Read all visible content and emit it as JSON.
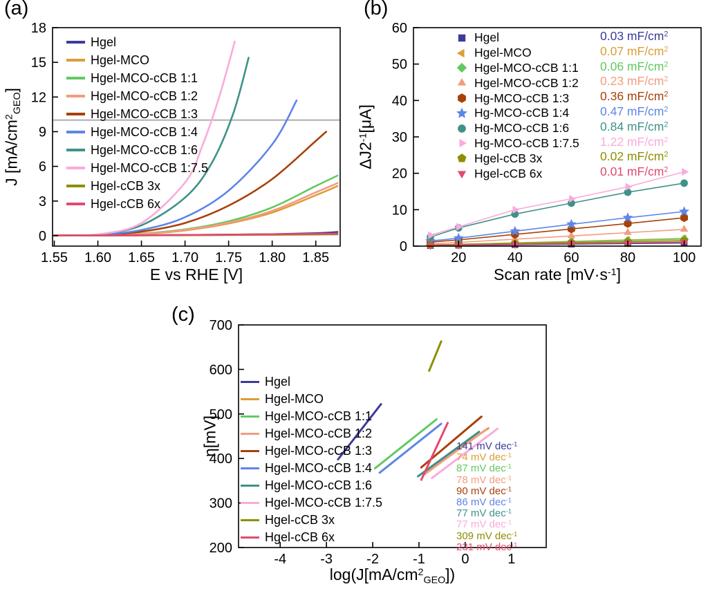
{
  "figure": {
    "panels": {
      "a": {
        "label": "(a)"
      },
      "b": {
        "label": "(b)"
      },
      "c": {
        "label": "(c)"
      }
    }
  },
  "chart_data": [
    {
      "id": "panel-a",
      "type": "line",
      "title": "",
      "xlabel": "E vs  RHE [V]",
      "ylabel": "J [mA/cm^{2}_{GEO}]",
      "xlim": [
        1.548,
        1.878
      ],
      "ylim": [
        -0.9,
        18
      ],
      "xticks": {
        "values": [
          1.55,
          1.6,
          1.65,
          1.7,
          1.75,
          1.8,
          1.85
        ],
        "labels": [
          "1.55",
          "1.60",
          "1.65",
          "1.70",
          "1.75",
          "1.80",
          "1.85"
        ]
      },
      "yticks": {
        "values": [
          0,
          3,
          6,
          9,
          12,
          15,
          18
        ],
        "labels": [
          "0",
          "3",
          "6",
          "9",
          "12",
          "15",
          "18"
        ]
      },
      "hlines": [
        10
      ],
      "legend_position": "top-left",
      "grid": false,
      "series": [
        {
          "name": "Hgel",
          "color": "#3d3b99",
          "points": [
            [
              1.55,
              0.02
            ],
            [
              1.6,
              0.03
            ],
            [
              1.65,
              0.04
            ],
            [
              1.7,
              0.06
            ],
            [
              1.75,
              0.09
            ],
            [
              1.8,
              0.13
            ],
            [
              1.85,
              0.22
            ],
            [
              1.875,
              0.32
            ]
          ]
        },
        {
          "name": "Hgel-MCO",
          "color": "#dd9d37",
          "points": [
            [
              1.55,
              0.02
            ],
            [
              1.6,
              0.04
            ],
            [
              1.65,
              0.14
            ],
            [
              1.7,
              0.46
            ],
            [
              1.75,
              1.05
            ],
            [
              1.8,
              2.0
            ],
            [
              1.85,
              3.5
            ],
            [
              1.875,
              4.3
            ]
          ]
        },
        {
          "name": "Hgel-MCO-cCB 1:1",
          "color": "#61c961",
          "points": [
            [
              1.55,
              0.02
            ],
            [
              1.6,
              0.05
            ],
            [
              1.65,
              0.18
            ],
            [
              1.7,
              0.55
            ],
            [
              1.75,
              1.25
            ],
            [
              1.8,
              2.45
            ],
            [
              1.85,
              4.3
            ],
            [
              1.875,
              5.2
            ]
          ]
        },
        {
          "name": "Hgel-MCO-cCB 1:2",
          "color": "#f49b80",
          "points": [
            [
              1.55,
              0.02
            ],
            [
              1.6,
              0.04
            ],
            [
              1.65,
              0.15
            ],
            [
              1.7,
              0.5
            ],
            [
              1.75,
              1.12
            ],
            [
              1.8,
              2.15
            ],
            [
              1.85,
              3.75
            ],
            [
              1.875,
              4.55
            ]
          ]
        },
        {
          "name": "Hgel-MCO-cCB 1:3",
          "color": "#a84008",
          "points": [
            [
              1.55,
              0.02
            ],
            [
              1.6,
              0.06
            ],
            [
              1.65,
              0.35
            ],
            [
              1.7,
              1.1
            ],
            [
              1.75,
              2.6
            ],
            [
              1.8,
              4.9
            ],
            [
              1.85,
              8.2
            ],
            [
              1.862,
              9.0
            ]
          ]
        },
        {
          "name": "Hgel-MCO-cCB 1:4",
          "color": "#5e85e8",
          "points": [
            [
              1.55,
              0.02
            ],
            [
              1.6,
              0.07
            ],
            [
              1.65,
              0.5
            ],
            [
              1.7,
              1.6
            ],
            [
              1.75,
              3.9
            ],
            [
              1.8,
              7.9
            ],
            [
              1.828,
              11.7
            ]
          ]
        },
        {
          "name": "Hgel-MCO-cCB 1:6",
          "color": "#3e9288",
          "points": [
            [
              1.55,
              0.02
            ],
            [
              1.6,
              0.1
            ],
            [
              1.65,
              0.9
            ],
            [
              1.7,
              3.3
            ],
            [
              1.73,
              6.2
            ],
            [
              1.755,
              10.5
            ],
            [
              1.773,
              15.4
            ]
          ]
        },
        {
          "name": "Hgel-MCO-cCB 1:7.5",
          "color": "#f9abdc",
          "points": [
            [
              1.55,
              0.02
            ],
            [
              1.6,
              0.12
            ],
            [
              1.65,
              1.1
            ],
            [
              1.7,
              4.6
            ],
            [
              1.72,
              7.8
            ],
            [
              1.74,
              12.2
            ],
            [
              1.757,
              16.8
            ]
          ]
        },
        {
          "name": "Hgel-cCB 3x",
          "color": "#8e8e00",
          "points": [
            [
              1.55,
              0.02
            ],
            [
              1.65,
              0.03
            ],
            [
              1.75,
              0.06
            ],
            [
              1.875,
              0.12
            ]
          ]
        },
        {
          "name": "Hgel-cCB 6x",
          "color": "#e24a6e",
          "points": [
            [
              1.55,
              0.02
            ],
            [
              1.65,
              0.04
            ],
            [
              1.75,
              0.09
            ],
            [
              1.875,
              0.18
            ]
          ]
        }
      ]
    },
    {
      "id": "panel-b",
      "type": "scatter",
      "title": "",
      "xlabel": "Scan rate [mV·s^{-1}]",
      "ylabel": "ΔJ2^{-1}[μA]",
      "xlim": [
        4,
        106
      ],
      "ylim": [
        0,
        60
      ],
      "xticks": {
        "values": [
          20,
          40,
          60,
          80,
          100
        ],
        "labels": [
          "20",
          "40",
          "60",
          "80",
          "100"
        ]
      },
      "yticks": {
        "values": [
          0,
          10,
          20,
          30,
          40,
          50,
          60
        ],
        "labels": [
          "0",
          "10",
          "20",
          "30",
          "40",
          "50",
          "60"
        ]
      },
      "legend_position": "top-left",
      "grid": false,
      "series": [
        {
          "name": "Hgel",
          "color": "#3d3b99",
          "marker": "square",
          "points": [
            [
              10,
              0.15
            ],
            [
              20,
              0.25
            ],
            [
              40,
              0.4
            ],
            [
              60,
              0.55
            ],
            [
              80,
              0.7
            ],
            [
              100,
              0.85
            ]
          ]
        },
        {
          "name": "Hgel-MCO",
          "color": "#dd9d37",
          "marker": "triangle-left",
          "points": [
            [
              10,
              0.3
            ],
            [
              20,
              0.5
            ],
            [
              40,
              0.9
            ],
            [
              60,
              1.3
            ],
            [
              80,
              1.7
            ],
            [
              100,
              2.1
            ]
          ]
        },
        {
          "name": "Hgel-MCO-cCB 1:1",
          "color": "#61c961",
          "marker": "diamond",
          "points": [
            [
              10,
              0.3
            ],
            [
              20,
              0.5
            ],
            [
              40,
              0.85
            ],
            [
              60,
              1.2
            ],
            [
              80,
              1.55
            ],
            [
              100,
              1.95
            ]
          ]
        },
        {
          "name": "Hgel-MCO-cCB 1:2",
          "color": "#f49b80",
          "marker": "triangle-up",
          "points": [
            [
              10,
              0.6
            ],
            [
              20,
              1.0
            ],
            [
              40,
              1.9
            ],
            [
              60,
              2.8
            ],
            [
              80,
              3.7
            ],
            [
              100,
              4.6
            ]
          ]
        },
        {
          "name": "Hg-MCO-cCB 1:3",
          "color": "#a84008",
          "marker": "hexagon",
          "points": [
            [
              10,
              1.1
            ],
            [
              20,
              1.7
            ],
            [
              40,
              3.2
            ],
            [
              60,
              4.7
            ],
            [
              80,
              6.2
            ],
            [
              100,
              7.8
            ]
          ]
        },
        {
          "name": "Hg-MCO-cCB 1:4",
          "color": "#5e85e8",
          "marker": "star",
          "points": [
            [
              10,
              1.4
            ],
            [
              20,
              2.2
            ],
            [
              40,
              4.1
            ],
            [
              60,
              6.0
            ],
            [
              80,
              7.8
            ],
            [
              100,
              9.5
            ]
          ]
        },
        {
          "name": "Hg-MCO-cCB 1:6",
          "color": "#3e9288",
          "marker": "circle",
          "points": [
            [
              10,
              2.5
            ],
            [
              20,
              5.0
            ],
            [
              40,
              8.8
            ],
            [
              60,
              11.8
            ],
            [
              80,
              14.8
            ],
            [
              100,
              17.3
            ]
          ]
        },
        {
          "name": "Hg-MCO-cCB 1:7.5",
          "color": "#f9abdc",
          "marker": "triangle-right",
          "points": [
            [
              10,
              3.0
            ],
            [
              20,
              5.3
            ],
            [
              40,
              10.0
            ],
            [
              60,
              13.0
            ],
            [
              80,
              16.3
            ],
            [
              100,
              20.4
            ]
          ]
        },
        {
          "name": "Hgel-cCB 3x",
          "color": "#8e8e00",
          "marker": "pentagon",
          "points": [
            [
              10,
              0.3
            ],
            [
              20,
              0.45
            ],
            [
              40,
              0.7
            ],
            [
              60,
              0.95
            ],
            [
              80,
              1.2
            ],
            [
              100,
              1.5
            ]
          ]
        },
        {
          "name": "Hgel-cCB 6x",
          "color": "#e24a6e",
          "marker": "triangle-down",
          "points": [
            [
              10,
              0.2
            ],
            [
              20,
              0.3
            ],
            [
              40,
              0.5
            ],
            [
              60,
              0.7
            ],
            [
              80,
              0.9
            ],
            [
              100,
              1.1
            ]
          ]
        }
      ],
      "annotations": [
        {
          "text": "0.03 mF/cm^{2}",
          "color": "#3d3b99"
        },
        {
          "text": "0.07 mF/cm^{2}",
          "color": "#dd9d37"
        },
        {
          "text": "0.06 mF/cm^{2}",
          "color": "#61c961"
        },
        {
          "text": "0.23 mF/cm^{2}",
          "color": "#f49b80"
        },
        {
          "text": "0.36 mF/cm^{2}",
          "color": "#a84008"
        },
        {
          "text": "0.47 mF/cm^{2}",
          "color": "#5e85e8"
        },
        {
          "text": "0.84 mF/cm^{2}",
          "color": "#3e9288"
        },
        {
          "text": "1.22 mF/cm^{2}",
          "color": "#f9abdc"
        },
        {
          "text": "0.02 mF/cm^{2}",
          "color": "#8e8e00"
        },
        {
          "text": "0.01 mF/cm^{2}",
          "color": "#e24a6e"
        }
      ]
    },
    {
      "id": "panel-c",
      "type": "line",
      "title": "",
      "xlabel": "log(J[mA/cm^{2}_{GEO}])",
      "ylabel": "η[mV]",
      "xlim": [
        -4.9,
        1.75
      ],
      "ylim": [
        200,
        700
      ],
      "xticks": {
        "values": [
          -4,
          -3,
          -2,
          -1,
          0,
          1
        ],
        "labels": [
          "-4",
          "-3",
          "-2",
          "-1",
          "0",
          "1"
        ]
      },
      "yticks": {
        "values": [
          200,
          300,
          400,
          500,
          600,
          700
        ],
        "labels": [
          "200",
          "300",
          "400",
          "500",
          "600",
          "700"
        ]
      },
      "legend_position": "middle-left",
      "grid": false,
      "series": [
        {
          "name": "Hgel",
          "color": "#3d3b99",
          "points": [
            [
              -2.75,
              398
            ],
            [
              -1.82,
              522
            ]
          ]
        },
        {
          "name": "Hgel-MCO",
          "color": "#dd9d37",
          "points": [
            [
              -0.85,
              372
            ],
            [
              0.5,
              468
            ]
          ]
        },
        {
          "name": "Hgel-MCO-cCB 1:1",
          "color": "#61c961",
          "points": [
            [
              -1.95,
              378
            ],
            [
              -0.62,
              488
            ]
          ]
        },
        {
          "name": "Hgel-MCO-cCB 1:2",
          "color": "#f49b80",
          "points": [
            [
              -0.9,
              363
            ],
            [
              0.45,
              465
            ]
          ]
        },
        {
          "name": "Hgel-MCO-cCB 1:3",
          "color": "#a84008",
          "points": [
            [
              -0.95,
              380
            ],
            [
              0.35,
              494
            ]
          ]
        },
        {
          "name": "Hgel-MCO-cCB 1:4",
          "color": "#5e85e8",
          "points": [
            [
              -1.85,
              368
            ],
            [
              -0.52,
              478
            ]
          ]
        },
        {
          "name": "Hgel-MCO-cCB 1:6",
          "color": "#3e9288",
          "points": [
            [
              -1.02,
              360
            ],
            [
              0.3,
              460
            ]
          ]
        },
        {
          "name": "Hgel-MCO-cCB 1:7.5",
          "color": "#f9abdc",
          "points": [
            [
              -0.72,
              356
            ],
            [
              0.7,
              467
            ]
          ]
        },
        {
          "name": "Hgel-cCB 3x",
          "color": "#8e8e00",
          "points": [
            [
              -0.78,
              597
            ],
            [
              -0.52,
              663
            ]
          ]
        },
        {
          "name": "Hgel-cCB 6x",
          "color": "#e24a6e",
          "points": [
            [
              -0.95,
              352
            ],
            [
              -0.38,
              480
            ]
          ]
        }
      ],
      "annotations": [
        {
          "text": "141 mV dec^{-1}",
          "color": "#3d3b99"
        },
        {
          "text": "74 mV dec^{-1}",
          "color": "#dd9d37"
        },
        {
          "text": "87 mV dec^{-1}",
          "color": "#61c961"
        },
        {
          "text": "78 mV dec^{-1}",
          "color": "#f49b80"
        },
        {
          "text": "90 mV dec^{-1}",
          "color": "#a84008"
        },
        {
          "text": "86 mV dec^{-1}",
          "color": "#5e85e8"
        },
        {
          "text": "77 mV dec^{-1}",
          "color": "#3e9288"
        },
        {
          "text": "77 mV dec^{-1}",
          "color": "#f9abdc"
        },
        {
          "text": "309 mV dec^{-1}",
          "color": "#8e8e00"
        },
        {
          "text": "231 mV dec^{-1}",
          "color": "#e24a6e"
        }
      ]
    }
  ]
}
